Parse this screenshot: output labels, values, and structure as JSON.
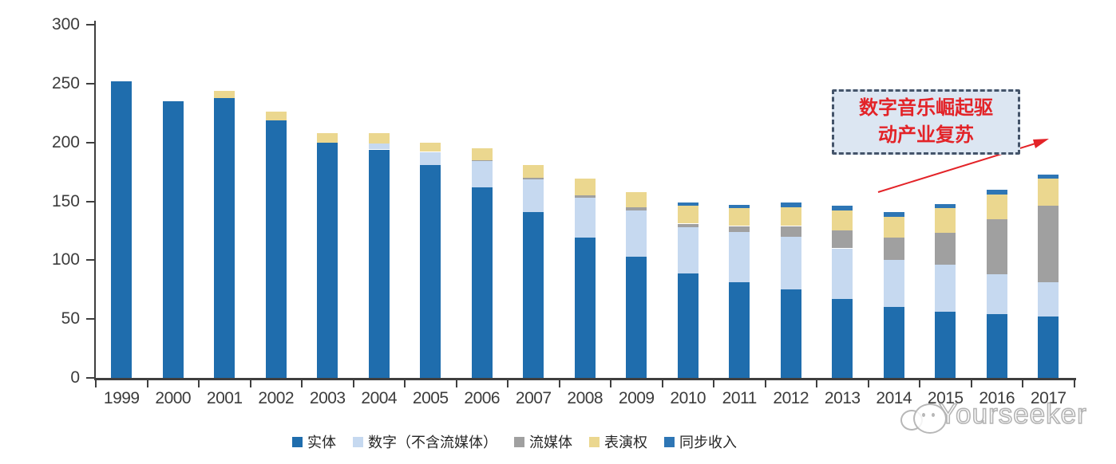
{
  "chart_data": {
    "type": "bar",
    "stacked": true,
    "categories": [
      "1999",
      "2000",
      "2001",
      "2002",
      "2003",
      "2004",
      "2005",
      "2006",
      "2007",
      "2008",
      "2009",
      "2010",
      "2011",
      "2012",
      "2013",
      "2014",
      "2015",
      "2016",
      "2017"
    ],
    "series": [
      {
        "name": "实体",
        "color": "#1F6DAD",
        "values": [
          252,
          235,
          238,
          219,
          200,
          194,
          181,
          162,
          141,
          119,
          103,
          89,
          81,
          75,
          67,
          60,
          56,
          54,
          52
        ]
      },
      {
        "name": "数字（不含流媒体）",
        "color": "#C6D9F0",
        "values": [
          0,
          0,
          0,
          0,
          0,
          5,
          11,
          22,
          28,
          34,
          39,
          39,
          43,
          45,
          43,
          40,
          40,
          34,
          29
        ]
      },
      {
        "name": "流媒体",
        "color": "#A0A0A0",
        "values": [
          0,
          0,
          0,
          0,
          0,
          0,
          0,
          1,
          1,
          2,
          3,
          3,
          5,
          9,
          15,
          19,
          27,
          47,
          65
        ]
      },
      {
        "name": "表演权",
        "color": "#EBD78F",
        "values": [
          0,
          0,
          6,
          7,
          8,
          9,
          8,
          10,
          11,
          14,
          13,
          15,
          15,
          16,
          17,
          18,
          21,
          21,
          23
        ]
      },
      {
        "name": "同步收入",
        "color": "#2E76B5",
        "values": [
          0,
          0,
          0,
          0,
          0,
          0,
          0,
          0,
          0,
          0,
          0,
          3,
          3,
          4,
          4,
          4,
          4,
          4,
          4
        ]
      }
    ],
    "ylim": [
      0,
      300
    ],
    "yticks": [
      0,
      50,
      100,
      150,
      200,
      250,
      300
    ],
    "xlabel": "",
    "ylabel": "",
    "title": "",
    "grid": false,
    "legend_position": "bottom",
    "axis_color": "#3f3f3f"
  },
  "annotation": {
    "line1": "数字音乐崛起驱",
    "line2": "动产业复苏",
    "fill": "#DCE6F2",
    "border": "#44546A",
    "text_color": "#E32328",
    "arrow_color": "#E32328"
  },
  "watermark": {
    "text": "Yourseeker"
  }
}
